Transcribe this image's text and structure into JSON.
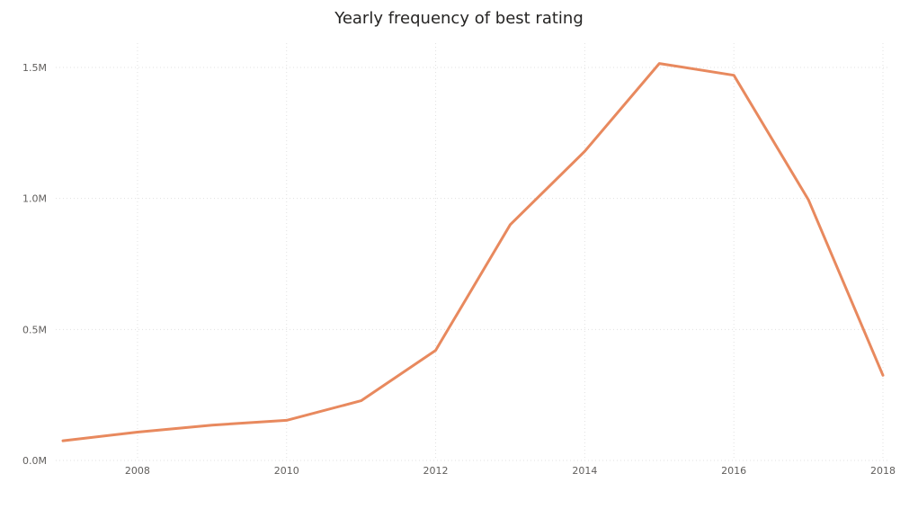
{
  "chart_data": {
    "type": "line",
    "title": "Yearly frequency of best rating",
    "xlabel": "",
    "ylabel": "",
    "x": [
      2007,
      2008,
      2009,
      2010,
      2011,
      2012,
      2013,
      2014,
      2015,
      2016,
      2017,
      2018
    ],
    "series": [
      {
        "values": [
          75000,
          108000,
          135000,
          153000,
          228000,
          420000,
          900000,
          1180000,
          1515000,
          1470000,
          995000,
          325000
        ]
      }
    ],
    "x_ticks": [
      "2008",
      "2010",
      "2012",
      "2014",
      "2016",
      "2018"
    ],
    "y_ticks": [
      "0.0M",
      "0.5M",
      "1.0M",
      "1.5M"
    ],
    "y_tick_values": [
      0,
      500000,
      1000000,
      1500000
    ],
    "xlim": [
      2007,
      2018
    ],
    "ylim": [
      0,
      1500000
    ],
    "grid": true,
    "line_color": "#E8895E",
    "grid_color": "#E1E1E1"
  }
}
